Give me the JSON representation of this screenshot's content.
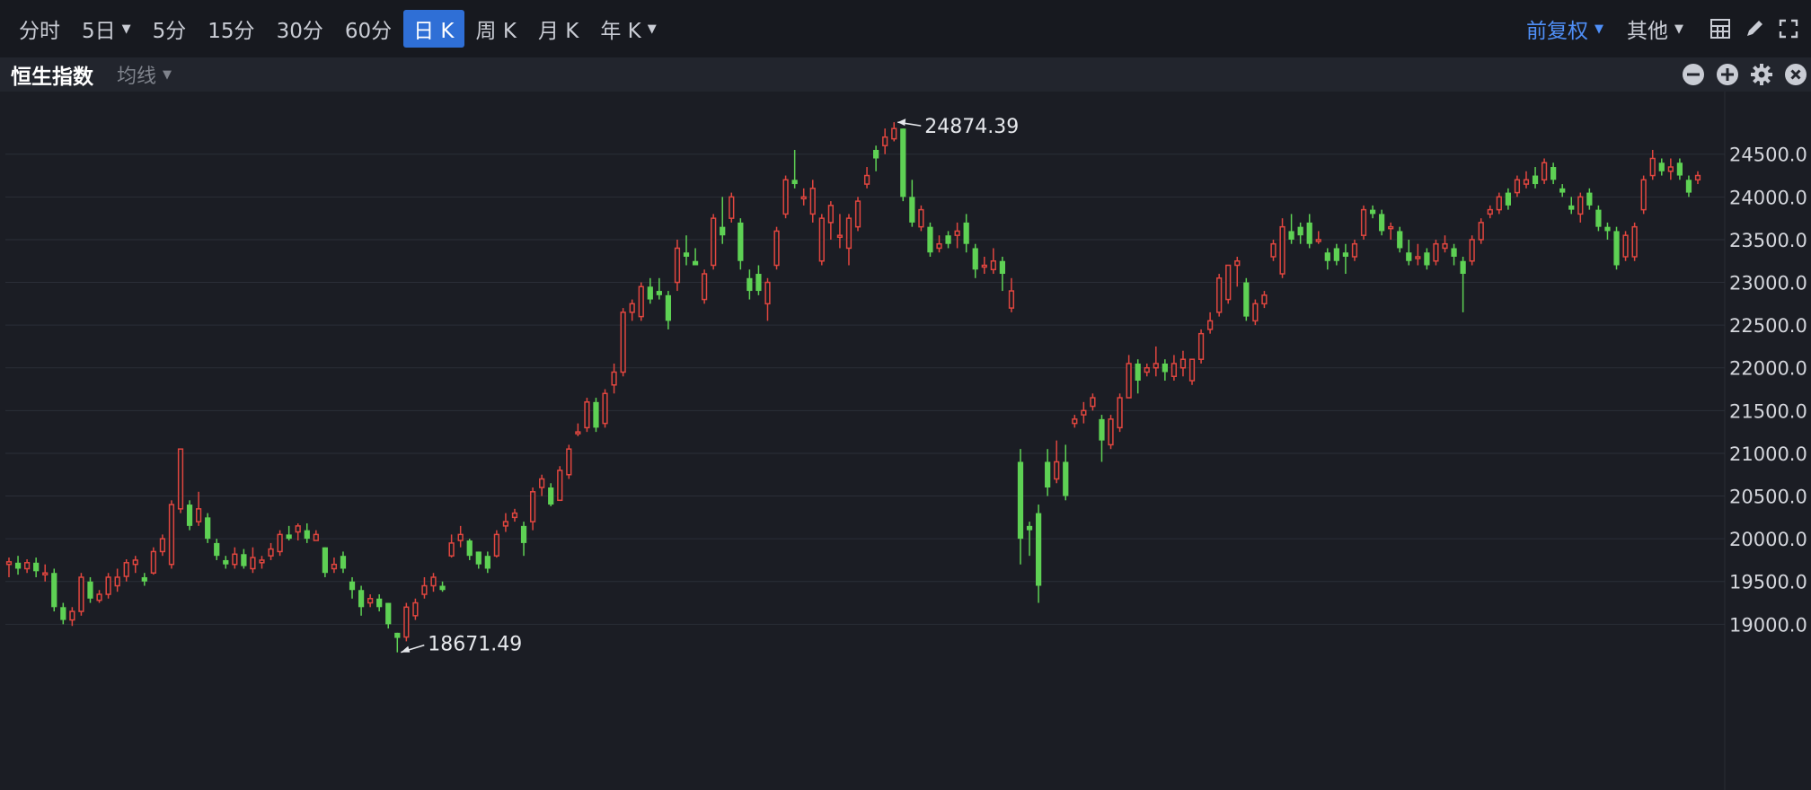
{
  "toolbar": {
    "timeframes": [
      {
        "label": "分时",
        "caret": false,
        "active": false
      },
      {
        "label": "5日",
        "caret": true,
        "active": false
      },
      {
        "label": "5分",
        "caret": false,
        "active": false
      },
      {
        "label": "15分",
        "caret": false,
        "active": false
      },
      {
        "label": "30分",
        "caret": false,
        "active": false
      },
      {
        "label": "60分",
        "caret": false,
        "active": false
      },
      {
        "label": "日 K",
        "caret": false,
        "active": true
      },
      {
        "label": "周 K",
        "caret": false,
        "active": false
      },
      {
        "label": "月 K",
        "caret": false,
        "active": false
      },
      {
        "label": "年 K",
        "caret": true,
        "active": false
      }
    ],
    "adjustment": "前复权",
    "other": "其他",
    "icons": [
      "layout-grid-icon",
      "draw-pen-icon",
      "fullscreen-icon"
    ]
  },
  "subbar": {
    "index_name": "恒生指数",
    "ma_label": "均线",
    "icons": [
      "zoom-out-icon",
      "zoom-in-icon",
      "settings-icon",
      "close-icon"
    ]
  },
  "colors": {
    "up": "#e0463f",
    "down": "#5ed154",
    "accent": "#2f6fd6",
    "background": "#1b1d24"
  },
  "chart_data": {
    "type": "candlestick",
    "yticks": [
      "24500.0",
      "24000.0",
      "23500.0",
      "23000.0",
      "22500.0",
      "22000.0",
      "21500.0",
      "21000.0",
      "20500.0",
      "20000.0",
      "19500.0",
      "19000.0"
    ],
    "ylim": [
      18671,
      24970
    ],
    "grid": true,
    "max_label": "24874.39",
    "min_label": "18671.49",
    "candles": [
      [
        19700,
        19730,
        19550,
        19780
      ],
      [
        19720,
        19650,
        19580,
        19800
      ],
      [
        19650,
        19720,
        19600,
        19760
      ],
      [
        19720,
        19620,
        19550,
        19780
      ],
      [
        19580,
        19600,
        19500,
        19700
      ],
      [
        19600,
        19200,
        19150,
        19650
      ],
      [
        19200,
        19050,
        19000,
        19250
      ],
      [
        19050,
        19150,
        18980,
        19200
      ],
      [
        19150,
        19550,
        19100,
        19600
      ],
      [
        19500,
        19300,
        19250,
        19550
      ],
      [
        19280,
        19350,
        19250,
        19400
      ],
      [
        19350,
        19550,
        19300,
        19600
      ],
      [
        19450,
        19550,
        19380,
        19650
      ],
      [
        19560,
        19720,
        19500,
        19760
      ],
      [
        19700,
        19750,
        19600,
        19800
      ],
      [
        19550,
        19500,
        19450,
        19600
      ],
      [
        19600,
        19850,
        19580,
        19900
      ],
      [
        19850,
        20000,
        19800,
        20050
      ],
      [
        19700,
        20400,
        19650,
        20450
      ],
      [
        20350,
        21050,
        20300,
        21050
      ],
      [
        20400,
        20150,
        20100,
        20450
      ],
      [
        20200,
        20350,
        20150,
        20550
      ],
      [
        20250,
        20000,
        19950,
        20300
      ],
      [
        19950,
        19800,
        19750,
        20000
      ],
      [
        19750,
        19700,
        19650,
        19800
      ],
      [
        19700,
        19820,
        19650,
        19900
      ],
      [
        19820,
        19680,
        19650,
        19880
      ],
      [
        19650,
        19780,
        19600,
        19900
      ],
      [
        19720,
        19750,
        19650,
        19800
      ],
      [
        19800,
        19880,
        19750,
        19950
      ],
      [
        19850,
        20050,
        19800,
        20100
      ],
      [
        20050,
        20000,
        19980,
        20150
      ],
      [
        20080,
        20150,
        19980,
        20180
      ],
      [
        20100,
        20000,
        19950,
        20180
      ],
      [
        19980,
        20050,
        19980,
        20100
      ],
      [
        19900,
        19600,
        19550,
        19900
      ],
      [
        19650,
        19700,
        19600,
        19780
      ],
      [
        19800,
        19650,
        19600,
        19850
      ],
      [
        19500,
        19400,
        19300,
        19550
      ],
      [
        19400,
        19200,
        19100,
        19450
      ],
      [
        19250,
        19300,
        19200,
        19350
      ],
      [
        19300,
        19200,
        19150,
        19350
      ],
      [
        19250,
        19000,
        18950,
        19250
      ],
      [
        18900,
        18840,
        18671,
        18900
      ],
      [
        18850,
        19200,
        18800,
        19250
      ],
      [
        19100,
        19250,
        19050,
        19300
      ],
      [
        19350,
        19450,
        19300,
        19550
      ],
      [
        19450,
        19550,
        19380,
        19600
      ],
      [
        19450,
        19400,
        19380,
        19500
      ],
      [
        19800,
        19950,
        19780,
        20050
      ],
      [
        19980,
        20050,
        19900,
        20150
      ],
      [
        19980,
        19800,
        19750,
        20000
      ],
      [
        19850,
        19700,
        19650,
        19850
      ],
      [
        19800,
        19650,
        19600,
        19850
      ],
      [
        19800,
        20050,
        19780,
        20100
      ],
      [
        20150,
        20200,
        20080,
        20300
      ],
      [
        20250,
        20300,
        20200,
        20350
      ],
      [
        20150,
        19950,
        19800,
        20200
      ],
      [
        20200,
        20550,
        20100,
        20600
      ],
      [
        20600,
        20700,
        20500,
        20750
      ],
      [
        20600,
        20400,
        20380,
        20650
      ],
      [
        20450,
        20800,
        20450,
        20850
      ],
      [
        20750,
        21050,
        20700,
        21100
      ],
      [
        21250,
        21250,
        21200,
        21350
      ],
      [
        21300,
        21600,
        21250,
        21650
      ],
      [
        21600,
        21300,
        21250,
        21650
      ],
      [
        21350,
        21700,
        21300,
        21750
      ],
      [
        21800,
        21950,
        21700,
        22050
      ],
      [
        21950,
        22650,
        21900,
        22700
      ],
      [
        22650,
        22750,
        22550,
        22800
      ],
      [
        22600,
        22950,
        22550,
        23000
      ],
      [
        22950,
        22800,
        22750,
        23050
      ],
      [
        22900,
        22850,
        22800,
        23050
      ],
      [
        22850,
        22550,
        22450,
        22900
      ],
      [
        23000,
        23400,
        22900,
        23500
      ],
      [
        23350,
        23300,
        23200,
        23550
      ],
      [
        23250,
        23200,
        23200,
        23400
      ],
      [
        22800,
        23100,
        22750,
        23150
      ],
      [
        23200,
        23750,
        23150,
        23800
      ],
      [
        23650,
        23550,
        23450,
        24000
      ],
      [
        23750,
        24000,
        23700,
        24050
      ],
      [
        23700,
        23250,
        23150,
        23750
      ],
      [
        23050,
        22900,
        22800,
        23150
      ],
      [
        23100,
        22900,
        22850,
        23200
      ],
      [
        22750,
        23000,
        22550,
        23050
      ],
      [
        23200,
        23600,
        23150,
        23650
      ],
      [
        23800,
        24200,
        23750,
        24250
      ],
      [
        24200,
        24150,
        24100,
        24550
      ],
      [
        24000,
        24000,
        23900,
        24100
      ],
      [
        23800,
        24100,
        23700,
        24200
      ],
      [
        23250,
        23750,
        23200,
        23800
      ],
      [
        23700,
        23900,
        23500,
        23950
      ],
      [
        23550,
        23550,
        23400,
        23800
      ],
      [
        23400,
        23750,
        23200,
        23800
      ],
      [
        23650,
        23950,
        23600,
        24000
      ],
      [
        24150,
        24250,
        24100,
        24350
      ],
      [
        24550,
        24450,
        24300,
        24600
      ],
      [
        24600,
        24700,
        24500,
        24800
      ],
      [
        24680,
        24800,
        24650,
        24874
      ],
      [
        24800,
        24000,
        23950,
        24800
      ],
      [
        24000,
        23700,
        23650,
        24200
      ],
      [
        23650,
        23850,
        23600,
        23900
      ],
      [
        23650,
        23350,
        23300,
        23700
      ],
      [
        23400,
        23450,
        23350,
        23550
      ],
      [
        23550,
        23450,
        23400,
        23600
      ],
      [
        23550,
        23600,
        23400,
        23700
      ],
      [
        23700,
        23450,
        23350,
        23800
      ],
      [
        23400,
        23150,
        23050,
        23450
      ],
      [
        23200,
        23200,
        23100,
        23300
      ],
      [
        23150,
        23250,
        23100,
        23400
      ],
      [
        23250,
        23100,
        22900,
        23300
      ],
      [
        22700,
        22900,
        22650,
        23050
      ],
      [
        20900,
        20000,
        19700,
        21050
      ],
      [
        20150,
        20100,
        19800,
        20200
      ],
      [
        20300,
        19450,
        19250,
        20400
      ],
      [
        20900,
        20600,
        20500,
        21050
      ],
      [
        20700,
        20900,
        20650,
        21150
      ],
      [
        20900,
        20500,
        20450,
        21100
      ],
      [
        21350,
        21400,
        21300,
        21450
      ],
      [
        21450,
        21500,
        21350,
        21600
      ],
      [
        21550,
        21650,
        21500,
        21700
      ],
      [
        21400,
        21150,
        20900,
        21450
      ],
      [
        21100,
        21400,
        21050,
        21450
      ],
      [
        21300,
        21650,
        21250,
        21700
      ],
      [
        21650,
        22050,
        21650,
        22150
      ],
      [
        22050,
        21850,
        21700,
        22100
      ],
      [
        21950,
        22000,
        21900,
        22050
      ],
      [
        22000,
        22050,
        21900,
        22250
      ],
      [
        22050,
        21950,
        21850,
        22100
      ],
      [
        21900,
        22050,
        21850,
        22150
      ],
      [
        22000,
        22100,
        21900,
        22200
      ],
      [
        21850,
        22100,
        21800,
        22100
      ],
      [
        22100,
        22400,
        22050,
        22450
      ],
      [
        22450,
        22550,
        22400,
        22650
      ],
      [
        22650,
        23050,
        22600,
        23100
      ],
      [
        22800,
        23200,
        22750,
        23200
      ],
      [
        23200,
        23250,
        22950,
        23300
      ],
      [
        23000,
        22600,
        22550,
        23050
      ],
      [
        22550,
        22750,
        22500,
        22800
      ],
      [
        22750,
        22850,
        22700,
        22900
      ],
      [
        23300,
        23450,
        23250,
        23500
      ],
      [
        23100,
        23650,
        23050,
        23750
      ],
      [
        23600,
        23500,
        23450,
        23800
      ],
      [
        23650,
        23550,
        23450,
        23700
      ],
      [
        23700,
        23450,
        23400,
        23800
      ],
      [
        23500,
        23500,
        23450,
        23600
      ],
      [
        23350,
        23250,
        23150,
        23400
      ],
      [
        23400,
        23250,
        23200,
        23450
      ],
      [
        23350,
        23300,
        23100,
        23450
      ],
      [
        23300,
        23450,
        23250,
        23500
      ],
      [
        23550,
        23850,
        23500,
        23900
      ],
      [
        23850,
        23800,
        23750,
        23900
      ],
      [
        23800,
        23600,
        23550,
        23850
      ],
      [
        23650,
        23650,
        23500,
        23700
      ],
      [
        23600,
        23400,
        23350,
        23650
      ],
      [
        23350,
        23250,
        23200,
        23500
      ],
      [
        23300,
        23300,
        23200,
        23450
      ],
      [
        23350,
        23200,
        23150,
        23400
      ],
      [
        23250,
        23450,
        23200,
        23500
      ],
      [
        23400,
        23450,
        23350,
        23550
      ],
      [
        23400,
        23300,
        23200,
        23450
      ],
      [
        23250,
        23100,
        22650,
        23300
      ],
      [
        23250,
        23500,
        23200,
        23550
      ],
      [
        23500,
        23700,
        23450,
        23750
      ],
      [
        23800,
        23850,
        23750,
        23900
      ],
      [
        23850,
        24000,
        23800,
        24050
      ],
      [
        24050,
        23900,
        23850,
        24100
      ],
      [
        24050,
        24200,
        24000,
        24250
      ],
      [
        24150,
        24200,
        24100,
        24300
      ],
      [
        24250,
        24150,
        24100,
        24350
      ],
      [
        24200,
        24400,
        24150,
        24450
      ],
      [
        24350,
        24200,
        24150,
        24400
      ],
      [
        24100,
        24050,
        24000,
        24150
      ],
      [
        23900,
        23850,
        23800,
        24000
      ],
      [
        23800,
        24000,
        23700,
        24050
      ],
      [
        24050,
        23900,
        23850,
        24100
      ],
      [
        23850,
        23650,
        23600,
        23900
      ],
      [
        23650,
        23600,
        23500,
        23700
      ],
      [
        23600,
        23200,
        23150,
        23650
      ],
      [
        23300,
        23550,
        23250,
        23600
      ],
      [
        23300,
        23650,
        23250,
        23700
      ],
      [
        23850,
        24200,
        23800,
        24250
      ],
      [
        24250,
        24450,
        24200,
        24550
      ],
      [
        24400,
        24300,
        24250,
        24450
      ],
      [
        24300,
        24350,
        24200,
        24450
      ],
      [
        24400,
        24250,
        24200,
        24450
      ],
      [
        24200,
        24050,
        24000,
        24250
      ],
      [
        24200,
        24250,
        24150,
        24300
      ]
    ]
  }
}
